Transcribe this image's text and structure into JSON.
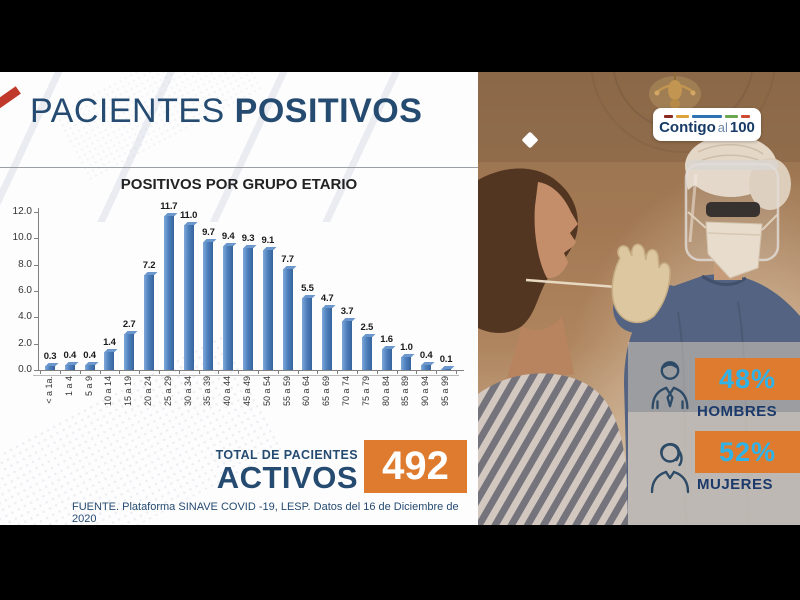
{
  "header": {
    "title_regular": "PACIENTES",
    "title_bold": "POSITIVOS"
  },
  "chart_data": {
    "type": "bar",
    "title": "POSITIVOS POR GRUPO ETARIO",
    "categories": [
      "< a 1a.",
      "1 a 4",
      "5 a 9",
      "10 a 14",
      "15 a 19",
      "20 a 24",
      "25 a 29",
      "30 a 34",
      "35 a 39",
      "40 a 44",
      "45 a 49",
      "50 a 54",
      "55 a 59",
      "60 a 64",
      "65 a 69",
      "70 a 74",
      "75 a 79",
      "80 a 84",
      "85 a 89",
      "90 a 94",
      "95 a 99"
    ],
    "values": [
      0.3,
      0.4,
      0.4,
      1.4,
      2.7,
      7.2,
      11.7,
      11.0,
      9.7,
      9.4,
      9.3,
      9.1,
      7.7,
      5.5,
      4.7,
      3.7,
      2.5,
      1.6,
      1.0,
      0.4,
      0.1
    ],
    "xlabel": "",
    "ylabel": "",
    "ylim": [
      0,
      12
    ],
    "ytick_step": 2,
    "grid": false,
    "legend": false,
    "bar_color": "#4f81bd",
    "value_labels_shown": true
  },
  "summary": {
    "label_line1": "TOTAL DE PACIENTES",
    "label_line2": "ACTIVOS",
    "value": "492",
    "box_color": "#df7b2e"
  },
  "footer": {
    "source": "FUENTE. Plataforma SINAVE COVID -19, LESP. Datos del 16 de Diciembre de 2020"
  },
  "photo_panel": {
    "logo": {
      "part1": "Contigo",
      "part2": "al",
      "part3": "100",
      "dash_colors": [
        "#8c2a22",
        "#dca43a",
        "#2e74b5",
        "#6aa84f",
        "#cf4a2e"
      ],
      "dash_widths": [
        9,
        13,
        30,
        13,
        9
      ]
    },
    "stats": [
      {
        "icon": "man-icon",
        "value": "48%",
        "label": "HOMBRES"
      },
      {
        "icon": "woman-icon",
        "value": "52%",
        "label": "MUJERES"
      }
    ],
    "value_color": "#2fb3e8",
    "box_color": "#df7b2e"
  }
}
